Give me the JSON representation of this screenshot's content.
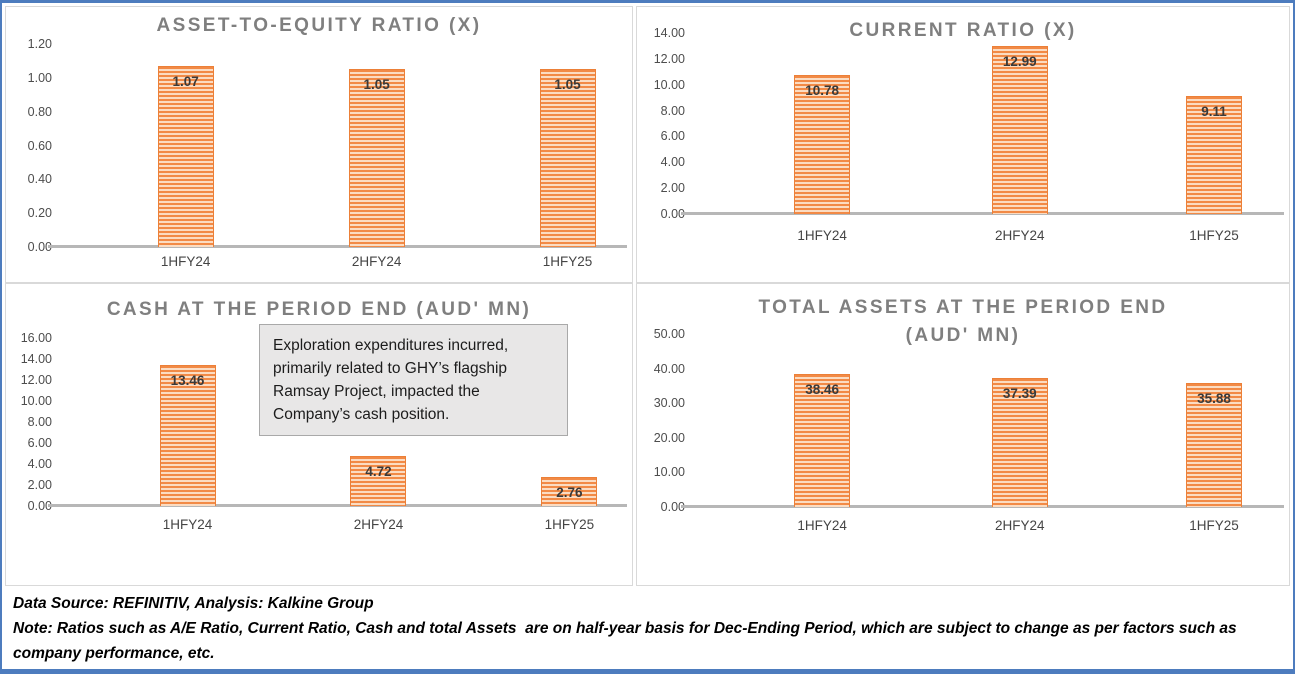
{
  "footer": {
    "source_line": "Data Source: REFINITIV, Analysis: Kalkine Group",
    "note_line": "Note: Ratios such as A/E Ratio, Current Ratio, Cash and total Assets  are on half-year basis for Dec-Ending Period, which are subject to change as per factors such as company performance, etc."
  },
  "colors": {
    "bar_stripe_dark": "#F28A46",
    "bar_stripe_light": "#FBDCC2",
    "bar_border": "#EC8038",
    "title_text": "#7F7F7F",
    "axis_text": "#4D4D4D",
    "axis_line": "#B7B7B7",
    "panel_border": "#D9D9D9",
    "frame_border": "#4D7CBE",
    "annotation_bg": "#E8E7E7",
    "annotation_border": "#A9A9A9",
    "data_label_text": "#3A3A3A"
  },
  "chart_data": [
    {
      "id": "asset-to-equity-ratio",
      "type": "bar",
      "title": "ASSET-TO-EQUITY RATIO (X)",
      "title_lines": [
        "ASSET-TO-EQUITY RATIO (X)"
      ],
      "categories": [
        "1HFY24",
        "2HFY24",
        "1HFY25"
      ],
      "values": [
        1.07,
        1.05,
        1.05
      ],
      "data_labels": [
        "1.07",
        "1.05",
        "1.05"
      ],
      "ylim": [
        0,
        1.2
      ],
      "yticks": [
        "1.20",
        "1.00",
        "0.80",
        "0.60",
        "0.40",
        "0.20",
        "0.00"
      ],
      "grid": false,
      "legend": "none"
    },
    {
      "id": "current-ratio",
      "type": "bar",
      "title": "CURRENT RATIO (X)",
      "title_lines": [
        "CURRENT RATIO (X)"
      ],
      "categories": [
        "1HFY24",
        "2HFY24",
        "1HFY25"
      ],
      "values": [
        10.78,
        12.99,
        9.11
      ],
      "data_labels": [
        "10.78",
        "12.99",
        "9.11"
      ],
      "ylim": [
        0,
        14
      ],
      "yticks": [
        "14.00",
        "12.00",
        "10.00",
        "8.00",
        "6.00",
        "4.00",
        "2.00",
        "0.00"
      ],
      "grid": false,
      "legend": "none"
    },
    {
      "id": "cash-at-the-period-end",
      "type": "bar",
      "title": "CASH AT THE PERIOD END (AUD' MN)",
      "title_lines": [
        "CASH AT THE PERIOD END (AUD' MN)"
      ],
      "categories": [
        "1HFY24",
        "2HFY24",
        "1HFY25"
      ],
      "values": [
        13.46,
        4.72,
        2.76
      ],
      "data_labels": [
        "13.46",
        "4.72",
        "2.76"
      ],
      "ylim": [
        0,
        16
      ],
      "yticks": [
        "16.00",
        "14.00",
        "12.00",
        "10.00",
        "8.00",
        "6.00",
        "4.00",
        "2.00",
        "0.00"
      ],
      "grid": false,
      "legend": "none",
      "annotation": "Exploration expenditures incurred, primarily related to GHY’s flagship Ramsay Project, impacted the Company’s cash position."
    },
    {
      "id": "total-assets-at-the-period-end",
      "type": "bar",
      "title": "TOTAL ASSETS AT THE PERIOD END (AUD' MN)",
      "title_lines": [
        "TOTAL ASSETS AT THE PERIOD END",
        "(AUD' MN)"
      ],
      "categories": [
        "1HFY24",
        "2HFY24",
        "1HFY25"
      ],
      "values": [
        38.46,
        37.39,
        35.88
      ],
      "data_labels": [
        "38.46",
        "37.39",
        "35.88"
      ],
      "ylim": [
        0,
        50
      ],
      "yticks": [
        "50.00",
        "40.00",
        "30.00",
        "20.00",
        "10.00",
        "0.00"
      ],
      "grid": false,
      "legend": "none"
    }
  ]
}
